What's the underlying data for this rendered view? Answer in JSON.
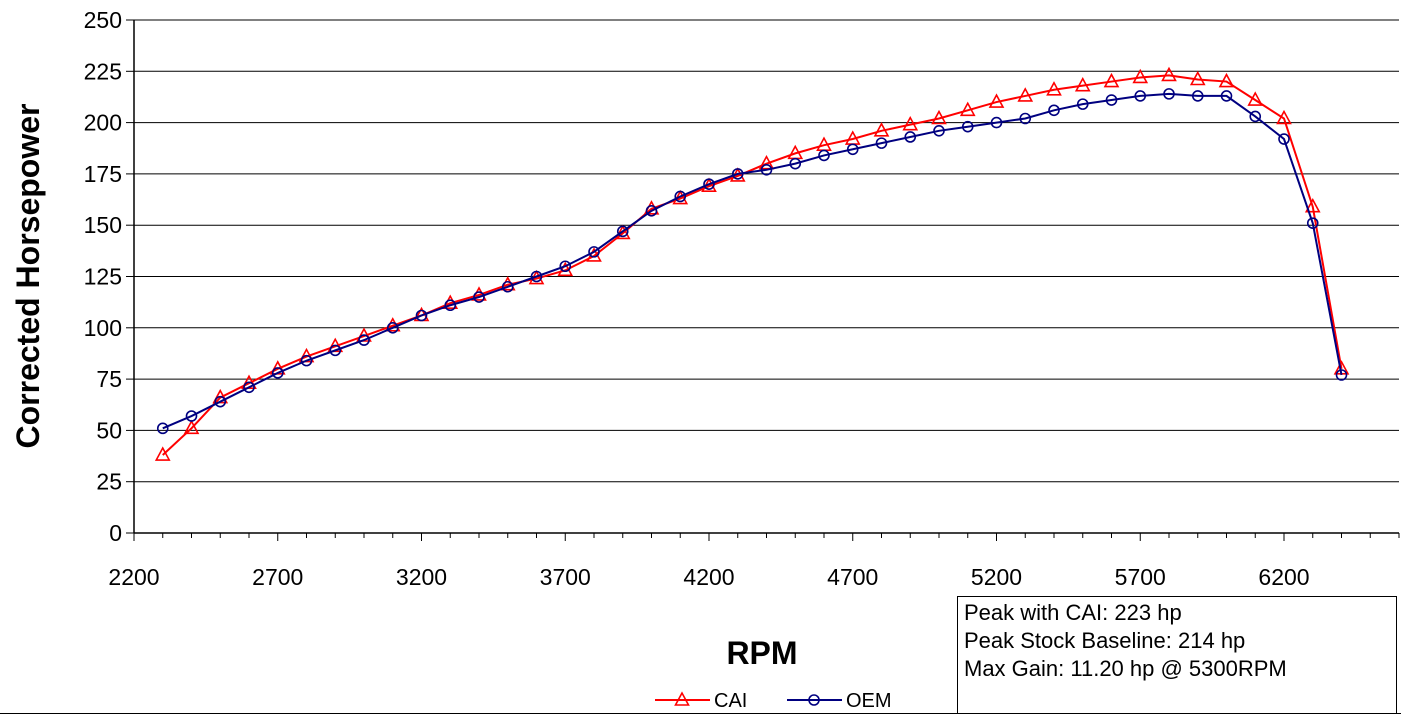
{
  "chart_data": {
    "type": "line",
    "xlabel": "RPM",
    "ylabel": "Corrected Horsepower",
    "xlim": [
      2200,
      6600
    ],
    "ylim": [
      0,
      250
    ],
    "x_ticks": [
      2200,
      2700,
      3200,
      3700,
      4200,
      4700,
      5200,
      5700,
      6200
    ],
    "y_ticks": [
      0,
      25,
      50,
      75,
      100,
      125,
      150,
      175,
      200,
      225,
      250
    ],
    "grid": "horizontal",
    "legend": "bottom-center",
    "x": [
      2300,
      2400,
      2500,
      2600,
      2700,
      2800,
      2900,
      3000,
      3100,
      3200,
      3300,
      3400,
      3500,
      3600,
      3700,
      3800,
      3900,
      4000,
      4100,
      4200,
      4300,
      4400,
      4500,
      4600,
      4700,
      4800,
      4900,
      5000,
      5100,
      5200,
      5300,
      5400,
      5500,
      5600,
      5700,
      5800,
      5900,
      6000,
      6100,
      6200,
      6300,
      6400
    ],
    "series": [
      {
        "name": "CAI",
        "color": "#ff0000",
        "marker": "triangle",
        "values": [
          38,
          51,
          66,
          73,
          80,
          86,
          91,
          96,
          101,
          106,
          112,
          116,
          121,
          124,
          128,
          135,
          146,
          158,
          163,
          169,
          174,
          180,
          185,
          189,
          192,
          196,
          199,
          202,
          206,
          210,
          213,
          216,
          218,
          220,
          222,
          223,
          221,
          220,
          211,
          202,
          159,
          80
        ]
      },
      {
        "name": "OEM",
        "color": "#000080",
        "marker": "circle",
        "values": [
          51,
          57,
          64,
          71,
          78,
          84,
          89,
          94,
          100,
          106,
          111,
          115,
          120,
          125,
          130,
          137,
          147,
          157,
          164,
          170,
          175,
          177,
          180,
          184,
          187,
          190,
          193,
          196,
          198,
          200,
          202,
          206,
          209,
          211,
          213,
          214,
          213,
          213,
          203,
          192,
          151,
          77
        ]
      }
    ]
  },
  "notes": {
    "line1": "Peak with CAI: 223 hp",
    "line2": "Peak Stock Baseline: 214 hp",
    "line3": "Max Gain: 11.20 hp @ 5300RPM"
  }
}
